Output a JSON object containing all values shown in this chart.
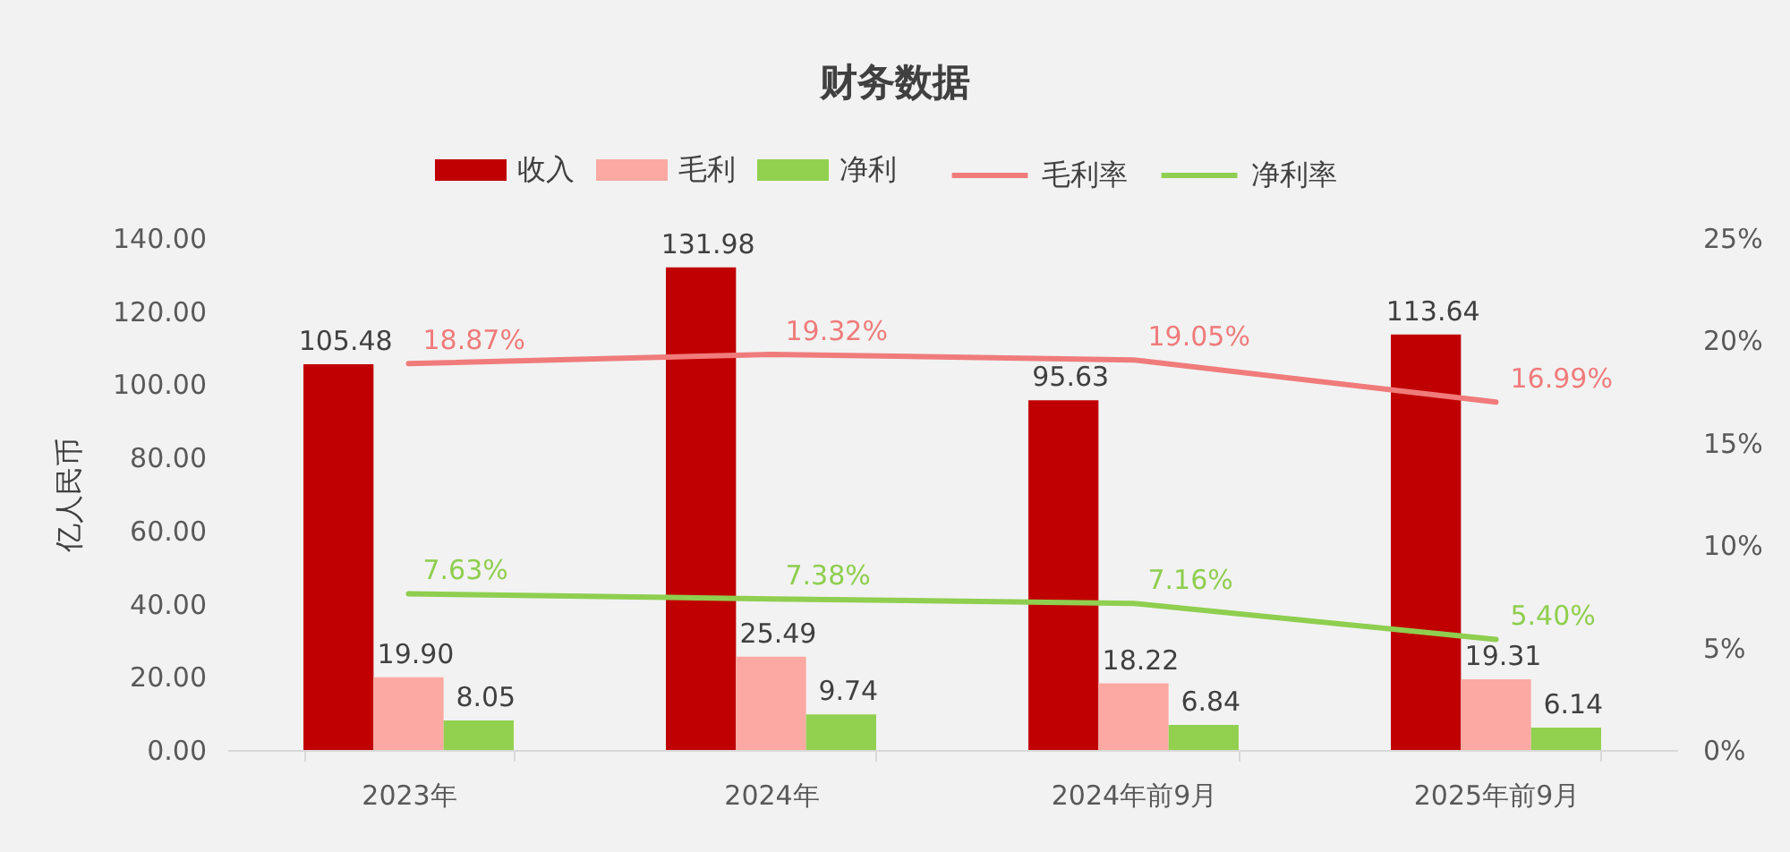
{
  "chart_data": {
    "type": "bar",
    "title": "财务数据",
    "ylabel": "亿人民币",
    "categories": [
      "2023年",
      "2024年",
      "2024年前9月",
      "2025年前9月"
    ],
    "series": [
      {
        "name": "收入",
        "color": "#c00000",
        "values": [
          105.48,
          131.98,
          95.63,
          113.64
        ],
        "value_labels": [
          "105.48",
          "131.98",
          "95.63",
          "113.64"
        ]
      },
      {
        "name": "毛利",
        "color": "#fba9a2",
        "values": [
          19.9,
          25.49,
          18.22,
          19.31
        ],
        "value_labels": [
          "19.90",
          "25.49",
          "18.22",
          "19.31"
        ]
      },
      {
        "name": "净利",
        "color": "#92d050",
        "values": [
          8.05,
          9.74,
          6.84,
          6.14
        ],
        "value_labels": [
          "8.05",
          "9.74",
          "6.84",
          "6.14"
        ]
      },
      {
        "name": "毛利率",
        "type": "line",
        "axis": "y2",
        "color": "#f07b7b",
        "values": [
          18.87,
          19.32,
          19.05,
          16.99
        ],
        "value_labels": [
          "18.87%",
          "19.32%",
          "19.05%",
          "16.99%"
        ]
      },
      {
        "name": "净利率",
        "type": "line",
        "axis": "y2",
        "color": "#8fce4f",
        "values": [
          7.63,
          7.38,
          7.16,
          5.4
        ],
        "value_labels": [
          "7.63%",
          "7.38%",
          "7.16%",
          "5.40%"
        ]
      }
    ],
    "ylim": [
      0,
      140
    ],
    "yticks": [
      {
        "value": 0,
        "label": "0.00"
      },
      {
        "value": 20,
        "label": "20.00"
      },
      {
        "value": 40,
        "label": "40.00"
      },
      {
        "value": 60,
        "label": "60.00"
      },
      {
        "value": 80,
        "label": "80.00"
      },
      {
        "value": 100,
        "label": "100.00"
      },
      {
        "value": 120,
        "label": "120.00"
      },
      {
        "value": 140,
        "label": "140.00"
      }
    ],
    "y2lim": [
      0,
      25
    ],
    "y2ticks": [
      {
        "value": 0,
        "label": "0%"
      },
      {
        "value": 5,
        "label": "5%"
      },
      {
        "value": 10,
        "label": "10%"
      },
      {
        "value": 15,
        "label": "15%"
      },
      {
        "value": 20,
        "label": "20%"
      },
      {
        "value": 25,
        "label": "25%"
      }
    ],
    "grid": false,
    "legend": "top",
    "marker": "none",
    "line_style": "solid"
  }
}
